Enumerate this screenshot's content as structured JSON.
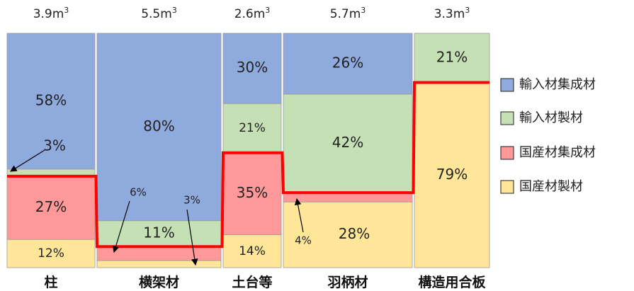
{
  "chart_data": {
    "type": "mosaic",
    "categories": [
      "柱",
      "横架材",
      "土台等",
      "羽柄材",
      "構造用合板"
    ],
    "volumes": [
      3.9,
      5.5,
      2.6,
      5.7,
      3.3
    ],
    "volume_labels": [
      "3.9m",
      "5.5m",
      "2.6m",
      "5.7m",
      "3.3m"
    ],
    "volume_unit_superscript": "3",
    "series": [
      {
        "name": "輸入材集成材",
        "color": "#8faadc",
        "values": [
          58,
          80,
          30,
          26,
          0
        ]
      },
      {
        "name": "輸入材製材",
        "color": "#c5e0b4",
        "values": [
          3,
          11,
          21,
          42,
          21
        ]
      },
      {
        "name": "国産材集成材",
        "color": "#ff9999",
        "values": [
          27,
          6,
          35,
          4,
          0
        ]
      },
      {
        "name": "国産材製材",
        "color": "#ffe699",
        "values": [
          12,
          3,
          14,
          28,
          79
        ]
      }
    ],
    "segment_labels": [
      [
        "58%",
        "3%",
        "27%",
        "12%"
      ],
      [
        "80%",
        "11%",
        "6%",
        "3%"
      ],
      [
        "30%",
        "21%",
        "35%",
        "14%"
      ],
      [
        "26%",
        "42%",
        "4%",
        "28%"
      ],
      [
        "",
        "21%",
        "",
        "79%"
      ]
    ],
    "domestic_boundary_color": "#ff0000",
    "legend": {
      "placement": "right"
    }
  }
}
